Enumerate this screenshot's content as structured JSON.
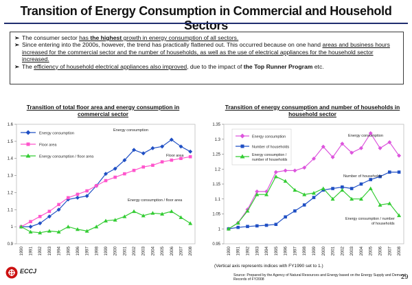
{
  "header": {
    "title": "Transition of Energy Consumption in Commercial and Household Sectors"
  },
  "summary": {
    "bullet_symbol": "➢",
    "b1_pre": "The consumer sector ",
    "b1_u1": "has ",
    "b1_bold": "the highest",
    "b1_u2": " growth in energy consumption of all sectors.",
    "b2_pre": "Since entering into the 2000s, however, the trend has practically flattened out. This occurred because on one hand ",
    "b2_u": "areas and business hours increased for the commercial sector and the number of households, as well as the use of electrical appliances for the household sector increased.",
    "b3_pre": "The ",
    "b3_u": "efficiency of household electrical appliances also improved",
    "b3_mid": ", due to the impact of ",
    "b3_bold": "the Top Runner Program",
    "b3_post": " etc."
  },
  "chart_data": [
    {
      "type": "line",
      "title": "Transition of total floor area and energy consumption in commercial sector",
      "categories": [
        "1990",
        "1991",
        "1992",
        "1993",
        "1994",
        "1995",
        "1996",
        "1997",
        "1998",
        "1999",
        "2000",
        "2001",
        "2002",
        "2003",
        "2004",
        "2005",
        "2006",
        "2007",
        "2008"
      ],
      "ylim": [
        0.9,
        1.6
      ],
      "yticks": [
        "0.9",
        "1",
        "1.1",
        "1.2",
        "1.3",
        "1.4",
        "1.5",
        "1.6"
      ],
      "ytick_values": [
        0.9,
        1.0,
        1.1,
        1.2,
        1.3,
        1.4,
        1.5,
        1.6
      ],
      "series": [
        {
          "name": "Energy consumption",
          "color": "#1f4fc4",
          "marker": "diamond",
          "values": [
            1.0,
            1.0,
            1.02,
            1.06,
            1.1,
            1.16,
            1.17,
            1.18,
            1.24,
            1.31,
            1.34,
            1.39,
            1.45,
            1.43,
            1.46,
            1.47,
            1.51,
            1.47,
            1.44
          ]
        },
        {
          "name": "Floor area",
          "color": "#ff55cc",
          "marker": "square",
          "values": [
            1.0,
            1.03,
            1.06,
            1.09,
            1.13,
            1.17,
            1.19,
            1.21,
            1.24,
            1.27,
            1.29,
            1.31,
            1.33,
            1.35,
            1.36,
            1.38,
            1.39,
            1.4,
            1.41
          ]
        },
        {
          "name": "Energy consumption / floor area",
          "color": "#33cc33",
          "marker": "triangle",
          "values": [
            1.0,
            0.97,
            0.965,
            0.975,
            0.97,
            1.0,
            0.985,
            0.975,
            1.0,
            1.035,
            1.04,
            1.06,
            1.09,
            1.065,
            1.08,
            1.075,
            1.09,
            1.055,
            1.02
          ]
        }
      ],
      "legend": [
        "Energy consumption",
        "Floor area",
        "Energy consumption / floor area"
      ],
      "annotations": [
        "Energy consumption",
        "Floor area",
        "Energy consumption / floor area"
      ]
    },
    {
      "type": "line",
      "title": "Transition of energy consumption and number of households in household sector",
      "categories": [
        "1990",
        "1991",
        "1992",
        "1993",
        "1994",
        "1995",
        "1996",
        "1997",
        "1998",
        "1999",
        "2000",
        "2001",
        "2002",
        "2003",
        "2004",
        "2005",
        "2006",
        "2007",
        "2008"
      ],
      "ylim": [
        0.95,
        1.35
      ],
      "yticks": [
        "0.95",
        "1",
        "1.05",
        "1.1",
        "1.15",
        "1.2",
        "1.25",
        "1.3",
        "1.35"
      ],
      "ytick_values": [
        0.95,
        1.0,
        1.05,
        1.1,
        1.15,
        1.2,
        1.25,
        1.3,
        1.35
      ],
      "series": [
        {
          "name": "Energy consumption",
          "color": "#dd55dd",
          "marker": "diamond",
          "values": [
            1.0,
            1.02,
            1.065,
            1.125,
            1.125,
            1.19,
            1.195,
            1.195,
            1.205,
            1.235,
            1.275,
            1.24,
            1.285,
            1.255,
            1.27,
            1.32,
            1.27,
            1.29,
            1.245
          ]
        },
        {
          "name": "Number of households",
          "color": "#1f4fc4",
          "marker": "square",
          "values": [
            1.0,
            1.005,
            1.008,
            1.01,
            1.012,
            1.015,
            1.04,
            1.06,
            1.08,
            1.105,
            1.13,
            1.135,
            1.14,
            1.135,
            1.15,
            1.165,
            1.175,
            1.19,
            1.19
          ]
        },
        {
          "name": "Energy consumption / number of households",
          "color": "#33cc33",
          "marker": "triangle",
          "values": [
            1.0,
            1.02,
            1.06,
            1.115,
            1.115,
            1.175,
            1.16,
            1.13,
            1.115,
            1.12,
            1.135,
            1.1,
            1.13,
            1.1,
            1.1,
            1.135,
            1.08,
            1.085,
            1.045
          ]
        }
      ],
      "legend": [
        "Energy consumption",
        "Number of households",
        "Energy consumption / number of households"
      ],
      "annotations": [
        "Energy consumption",
        "Number of households",
        "Energy consumption / number of households"
      ]
    }
  ],
  "labels": {
    "left_title_1": "Transition of total floor area and energy consumption in",
    "left_title_2": "commercial sector",
    "right_title_1": "Transition of energy consumption and number of households in",
    "right_title_2": "household sector",
    "left_legend_1": "Energy consumption",
    "left_legend_2": "Floor area",
    "left_legend_3": "Energy consumption / floor area",
    "left_anno_energy": "Energy consumption",
    "left_anno_floor": "Floor area",
    "left_anno_ratio": "Energy consumption / floor area",
    "right_legend_1": "Energy consumption",
    "right_legend_2": "Number of households",
    "right_legend_3a": "Energy consumption /",
    "right_legend_3b": "number of households",
    "right_anno_energy": "Energy consumption",
    "right_anno_households": "Number of households",
    "right_anno_ratio_a": "Energy consumption / number",
    "right_anno_ratio_b": "of households"
  },
  "footer": {
    "note": "(Vertical axis represents indices with FY1990 set to 1.)",
    "source": "Source: Prepared by the Agency of Natural Resources and Energy based on the Energy Supply and Demand Records of FY2008",
    "page": "29",
    "logo": "ECCJ"
  }
}
